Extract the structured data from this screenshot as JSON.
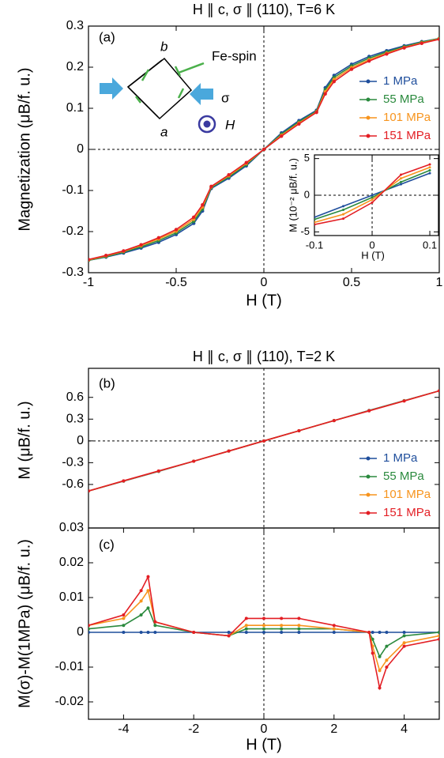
{
  "chart_data": [
    {
      "type": "line",
      "title": "H ∥ c, σ ∥ (110), T=6 K",
      "x_label": "H (T)",
      "y_label": "Magnetization (μB/f. u.)",
      "annotations": [
        "(a)",
        "b",
        "a",
        "Fe-spin",
        "σ",
        "H"
      ],
      "x": [
        -1,
        -0.9,
        -0.8,
        -0.7,
        -0.6,
        -0.5,
        -0.4,
        -0.35,
        -0.3,
        -0.2,
        -0.1,
        0,
        0.1,
        0.2,
        0.3,
        0.35,
        0.4,
        0.5,
        0.6,
        0.7,
        0.8,
        0.9,
        1
      ],
      "series": [
        {
          "name": "1 MPa",
          "color": "#1f4e9c",
          "values": [
            -0.27,
            -0.262,
            -0.252,
            -0.24,
            -0.226,
            -0.207,
            -0.18,
            -0.15,
            -0.095,
            -0.07,
            -0.04,
            0,
            0.04,
            0.07,
            0.095,
            0.15,
            0.18,
            0.207,
            0.226,
            0.24,
            0.252,
            0.262,
            0.27
          ]
        },
        {
          "name": "55 MPa",
          "color": "#2b8a3e",
          "values": [
            -0.27,
            -0.261,
            -0.25,
            -0.237,
            -0.222,
            -0.203,
            -0.175,
            -0.145,
            -0.093,
            -0.067,
            -0.037,
            0,
            0.037,
            0.067,
            0.093,
            0.145,
            0.175,
            0.203,
            0.222,
            0.237,
            0.25,
            0.261,
            0.27
          ]
        },
        {
          "name": "101 MPa",
          "color": "#f7941d",
          "values": [
            -0.269,
            -0.259,
            -0.248,
            -0.234,
            -0.218,
            -0.199,
            -0.17,
            -0.14,
            -0.091,
            -0.064,
            -0.034,
            0,
            0.034,
            0.064,
            0.091,
            0.14,
            0.17,
            0.199,
            0.218,
            0.234,
            0.248,
            0.259,
            0.269
          ]
        },
        {
          "name": "151 MPa",
          "color": "#e31e24",
          "values": [
            -0.268,
            -0.258,
            -0.247,
            -0.232,
            -0.215,
            -0.195,
            -0.165,
            -0.135,
            -0.09,
            -0.062,
            -0.032,
            0,
            0.032,
            0.062,
            0.09,
            0.135,
            0.165,
            0.195,
            0.215,
            0.232,
            0.247,
            0.258,
            0.268
          ]
        }
      ],
      "xlim": [
        -1,
        1
      ],
      "xticks": [
        -1,
        -0.5,
        0,
        0.5,
        1
      ],
      "ylim": [
        -0.3,
        0.3
      ],
      "yticks": [
        -0.3,
        -0.2,
        -0.1,
        0,
        0.1,
        0.2,
        0.3
      ]
    },
    {
      "type": "line",
      "x_label": "H (T)",
      "y_label": "M (10⁻² μB/f. u.)",
      "x": [
        -0.1,
        -0.05,
        0,
        0.05,
        0.1
      ],
      "series": [
        {
          "color": "#1f4e9c",
          "values": [
            -3,
            -1.5,
            0,
            1.5,
            3
          ]
        },
        {
          "color": "#2b8a3e",
          "values": [
            -3.3,
            -2,
            -0.3,
            1.8,
            3.4
          ]
        },
        {
          "color": "#f7941d",
          "values": [
            -3.7,
            -2.6,
            -0.6,
            2.3,
            3.8
          ]
        },
        {
          "color": "#e31e24",
          "values": [
            -4,
            -3.2,
            -1,
            2.8,
            4.2
          ]
        }
      ],
      "xlim": [
        -0.1,
        0.115
      ],
      "xticks": [
        -0.1,
        0,
        0.1
      ],
      "ylim": [
        -5.5,
        5.5
      ],
      "yticks": [
        -5,
        0,
        5
      ]
    },
    {
      "type": "line",
      "title": "H ∥ c, σ ∥ (110), T=2 K",
      "y_label": "M (μB/f. u.)",
      "annotations": [
        "(b)"
      ],
      "x": [
        -5,
        -4,
        -3,
        -2,
        -1,
        0,
        1,
        2,
        3,
        4,
        5
      ],
      "series": [
        {
          "name": "1 MPa",
          "color": "#1f4e9c",
          "values": [
            -0.69,
            -0.555,
            -0.42,
            -0.28,
            -0.14,
            0,
            0.14,
            0.28,
            0.42,
            0.555,
            0.69
          ]
        },
        {
          "name": "55 MPa",
          "color": "#2b8a3e",
          "values": [
            -0.69,
            -0.553,
            -0.418,
            -0.28,
            -0.14,
            0,
            0.14,
            0.28,
            0.418,
            0.553,
            0.69
          ]
        },
        {
          "name": "101 MPa",
          "color": "#f7941d",
          "values": [
            -0.69,
            -0.552,
            -0.416,
            -0.28,
            -0.14,
            0,
            0.14,
            0.28,
            0.416,
            0.552,
            0.69
          ]
        },
        {
          "name": "151 MPa",
          "color": "#e31e24",
          "values": [
            -0.69,
            -0.55,
            -0.414,
            -0.28,
            -0.14,
            0,
            0.14,
            0.28,
            0.414,
            0.55,
            0.69
          ]
        }
      ],
      "xlim": [
        -5,
        5
      ],
      "ylim": [
        -1.2,
        1.0
      ],
      "yticks": [
        -0.6,
        -0.3,
        0,
        0.3,
        0.6
      ]
    },
    {
      "type": "line",
      "x_label": "H (T)",
      "y_label": "M(σ)-M(1MPa)  (μB/f. u.)",
      "annotations": [
        "(c)"
      ],
      "x": [
        -5,
        -4,
        -3.5,
        -3.3,
        -3.1,
        -2,
        -1,
        -0.5,
        0,
        0.5,
        1,
        2,
        3,
        3.1,
        3.3,
        3.5,
        4,
        5
      ],
      "series": [
        {
          "color": "#1f4e9c",
          "values": [
            0,
            0,
            0,
            0,
            0,
            0,
            0,
            0,
            0,
            0,
            0,
            0,
            0,
            0,
            0,
            0,
            0,
            0
          ]
        },
        {
          "color": "#2b8a3e",
          "values": [
            0.001,
            0.002,
            0.005,
            0.007,
            0.002,
            0,
            -0.001,
            0.001,
            0.001,
            0.001,
            0.001,
            0.001,
            0,
            -0.002,
            -0.007,
            -0.004,
            -0.001,
            0
          ]
        },
        {
          "color": "#f7941d",
          "values": [
            0.002,
            0.004,
            0.009,
            0.012,
            0.003,
            0,
            -0.001,
            0.002,
            0.002,
            0.002,
            0.002,
            0.001,
            0,
            -0.004,
            -0.011,
            -0.008,
            -0.003,
            -0.001
          ]
        },
        {
          "color": "#e31e24",
          "values": [
            0.002,
            0.005,
            0.012,
            0.016,
            0.003,
            0,
            -0.001,
            0.004,
            0.004,
            0.004,
            0.004,
            0.002,
            0,
            -0.006,
            -0.016,
            -0.01,
            -0.004,
            -0.002
          ]
        }
      ],
      "xlim": [
        -5,
        5
      ],
      "xticks": [
        -4,
        -2,
        0,
        2,
        4
      ],
      "ylim": [
        -0.025,
        0.03
      ],
      "yticks": [
        -0.02,
        -0.01,
        0,
        0.01,
        0.02,
        0.03
      ]
    }
  ]
}
